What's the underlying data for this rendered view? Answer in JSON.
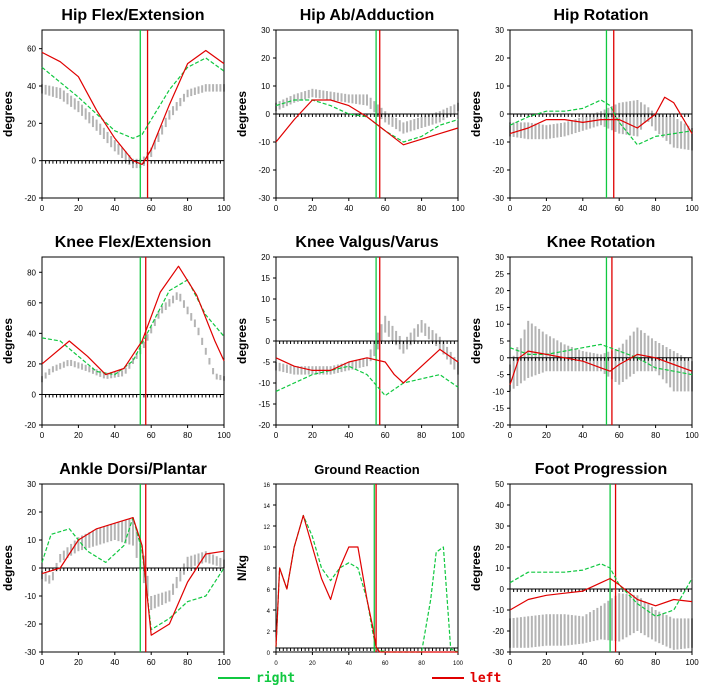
{
  "colors": {
    "right": "#10c840",
    "left": "#e00000",
    "normal": "#b4b4b4",
    "axis": "#000000"
  },
  "legend": {
    "right_label": "right",
    "left_label": "left"
  },
  "chart_data": [
    {
      "type": "line",
      "title": "Hip Flex/Extension",
      "ylabel": "degrees",
      "xlim": [
        0,
        100
      ],
      "ylim": [
        -20,
        70
      ],
      "yticks": [
        -20,
        0,
        20,
        40,
        60
      ],
      "xticks": [
        0,
        20,
        40,
        60,
        80,
        100
      ],
      "vlines": {
        "right": 54,
        "left": 58
      },
      "band": {
        "x": [
          0,
          10,
          20,
          30,
          40,
          50,
          55,
          60,
          70,
          80,
          90,
          100
        ],
        "low": [
          36,
          33,
          26,
          16,
          5,
          -4,
          -4,
          2,
          22,
          34,
          37,
          37
        ],
        "high": [
          41,
          39,
          32,
          22,
          11,
          1,
          1,
          7,
          27,
          38,
          41,
          41
        ]
      },
      "series": [
        {
          "name": "right",
          "x": [
            0,
            10,
            20,
            30,
            40,
            50,
            55,
            60,
            70,
            80,
            90,
            100
          ],
          "y": [
            50,
            42,
            34,
            25,
            16,
            12,
            14,
            22,
            38,
            50,
            55,
            48
          ]
        },
        {
          "name": "left",
          "x": [
            0,
            10,
            20,
            30,
            40,
            50,
            55,
            60,
            70,
            80,
            90,
            100
          ],
          "y": [
            58,
            53,
            45,
            27,
            12,
            0,
            -2,
            6,
            30,
            52,
            59,
            52
          ]
        }
      ]
    },
    {
      "type": "line",
      "title": "Hip Ab/Adduction",
      "ylabel": "degrees",
      "xlim": [
        0,
        100
      ],
      "ylim": [
        -30,
        30
      ],
      "yticks": [
        -30,
        -20,
        -10,
        0,
        10,
        20,
        30
      ],
      "xticks": [
        0,
        20,
        40,
        60,
        80,
        100
      ],
      "vlines": {
        "right": 55,
        "left": 57
      },
      "band": {
        "x": [
          0,
          10,
          20,
          30,
          40,
          50,
          60,
          70,
          80,
          90,
          100
        ],
        "low": [
          1,
          4,
          6,
          5,
          4,
          3,
          -3,
          -7,
          -5,
          -3,
          1
        ],
        "high": [
          4,
          7,
          9,
          8,
          7,
          7,
          1,
          -3,
          -1,
          1,
          4
        ]
      },
      "series": [
        {
          "name": "right",
          "x": [
            0,
            10,
            20,
            30,
            40,
            50,
            60,
            70,
            80,
            90,
            100
          ],
          "y": [
            3,
            5,
            5,
            3,
            0,
            -1,
            -6,
            -10,
            -8,
            -4,
            -2
          ]
        },
        {
          "name": "left",
          "x": [
            0,
            10,
            20,
            30,
            40,
            50,
            60,
            70,
            80,
            90,
            100
          ],
          "y": [
            -10,
            -2,
            5,
            5,
            3,
            -1,
            -6,
            -11,
            -9,
            -7,
            -5
          ]
        }
      ]
    },
    {
      "type": "line",
      "title": "Hip Rotation",
      "ylabel": "degrees",
      "xlim": [
        0,
        100
      ],
      "ylim": [
        -30,
        30
      ],
      "yticks": [
        -30,
        -20,
        -10,
        0,
        10,
        20,
        30
      ],
      "xticks": [
        0,
        20,
        40,
        60,
        80,
        100
      ],
      "vlines": {
        "right": 53,
        "left": 57
      },
      "band": {
        "x": [
          0,
          10,
          20,
          30,
          40,
          50,
          60,
          70,
          75,
          80,
          90,
          100
        ],
        "low": [
          -8,
          -9,
          -9,
          -8,
          -6,
          -4,
          -7,
          -8,
          -2,
          -6,
          -12,
          -13
        ],
        "high": [
          -3,
          -3,
          -4,
          -3,
          -1,
          1,
          4,
          5,
          3,
          0,
          -1,
          -5
        ]
      },
      "series": [
        {
          "name": "right",
          "x": [
            0,
            10,
            20,
            30,
            40,
            50,
            55,
            60,
            70,
            80,
            90,
            100
          ],
          "y": [
            -4,
            -1,
            1,
            1,
            2,
            5,
            3,
            -3,
            -11,
            -8,
            -7,
            -6
          ]
        },
        {
          "name": "left",
          "x": [
            0,
            10,
            20,
            30,
            40,
            50,
            55,
            60,
            70,
            80,
            85,
            90,
            100
          ],
          "y": [
            -7,
            -5,
            -2,
            -2,
            -3,
            -2,
            -2,
            -2,
            -5,
            0,
            6,
            4,
            -7
          ]
        }
      ]
    },
    {
      "type": "line",
      "title": "Knee Flex/Extension",
      "ylabel": "degrees",
      "xlim": [
        0,
        100
      ],
      "ylim": [
        -20,
        90
      ],
      "yticks": [
        -20,
        0,
        20,
        40,
        60,
        80
      ],
      "xticks": [
        0,
        20,
        40,
        60,
        80,
        100
      ],
      "vlines": {
        "right": 54,
        "left": 57
      },
      "band": {
        "x": [
          0,
          5,
          15,
          25,
          35,
          45,
          55,
          65,
          75,
          85,
          95,
          100
        ],
        "low": [
          8,
          14,
          19,
          15,
          10,
          12,
          28,
          52,
          63,
          42,
          10,
          9
        ],
        "high": [
          12,
          18,
          23,
          19,
          14,
          16,
          32,
          57,
          68,
          47,
          14,
          12
        ]
      },
      "series": [
        {
          "name": "right",
          "x": [
            0,
            10,
            20,
            30,
            40,
            50,
            60,
            70,
            80,
            90,
            100
          ],
          "y": [
            37,
            35,
            25,
            15,
            13,
            22,
            45,
            68,
            75,
            52,
            38
          ]
        },
        {
          "name": "left",
          "x": [
            0,
            5,
            15,
            25,
            35,
            45,
            55,
            65,
            75,
            85,
            95,
            100
          ],
          "y": [
            20,
            25,
            35,
            25,
            13,
            17,
            35,
            67,
            84,
            65,
            35,
            22
          ]
        }
      ]
    },
    {
      "type": "line",
      "title": "Knee Valgus/Varus",
      "ylabel": "degrees",
      "xlim": [
        0,
        100
      ],
      "ylim": [
        -20,
        20
      ],
      "yticks": [
        -20,
        -15,
        -10,
        -5,
        0,
        5,
        10,
        15,
        20
      ],
      "xticks": [
        0,
        20,
        40,
        60,
        80,
        100
      ],
      "vlines": {
        "right": 55,
        "left": 57
      },
      "band": {
        "x": [
          0,
          10,
          20,
          30,
          40,
          50,
          55,
          60,
          70,
          80,
          90,
          100
        ],
        "low": [
          -7,
          -8,
          -8,
          -8,
          -7,
          -6,
          -3,
          2,
          -3,
          2,
          -2,
          -8
        ],
        "high": [
          -5,
          -6,
          -6,
          -6,
          -5,
          -4,
          1,
          6,
          0,
          5,
          1,
          -5
        ]
      },
      "series": [
        {
          "name": "right",
          "x": [
            0,
            10,
            20,
            30,
            40,
            50,
            60,
            70,
            80,
            90,
            100
          ],
          "y": [
            -12,
            -10,
            -8,
            -7,
            -6,
            -8,
            -13,
            -10,
            -9,
            -8,
            -11
          ]
        },
        {
          "name": "left",
          "x": [
            0,
            10,
            20,
            30,
            40,
            50,
            60,
            65,
            70,
            80,
            90,
            100
          ],
          "y": [
            -4,
            -6,
            -7,
            -7,
            -5,
            -4,
            -5,
            -8,
            -10,
            -6,
            -2,
            -5
          ]
        }
      ]
    },
    {
      "type": "line",
      "title": "Knee Rotation",
      "ylabel": "degrees",
      "xlim": [
        0,
        100
      ],
      "ylim": [
        -20,
        30
      ],
      "yticks": [
        -20,
        -15,
        -10,
        -5,
        0,
        5,
        10,
        15,
        20,
        25,
        30
      ],
      "xticks": [
        0,
        20,
        40,
        60,
        80,
        100
      ],
      "vlines": {
        "right": 53,
        "left": 56
      },
      "band": {
        "x": [
          0,
          10,
          20,
          30,
          40,
          50,
          60,
          70,
          80,
          90,
          100
        ],
        "low": [
          -10,
          -6,
          -4,
          -4,
          -4,
          -4,
          -8,
          -4,
          -4,
          -10,
          -10
        ],
        "high": [
          -2,
          11,
          7,
          4,
          2,
          1,
          3,
          9,
          5,
          2,
          -1
        ]
      },
      "series": [
        {
          "name": "right",
          "x": [
            0,
            10,
            20,
            30,
            40,
            50,
            60,
            70,
            80,
            90,
            100
          ],
          "y": [
            3,
            1,
            1,
            2,
            3,
            4,
            2,
            0,
            -3,
            -4,
            -5
          ]
        },
        {
          "name": "left",
          "x": [
            0,
            5,
            10,
            20,
            30,
            40,
            50,
            55,
            60,
            70,
            80,
            90,
            100
          ],
          "y": [
            -8,
            0,
            2,
            1,
            0,
            -1,
            -3,
            -4,
            -2,
            1,
            0,
            -2,
            -4
          ]
        }
      ]
    },
    {
      "type": "line",
      "title": "Ankle Dorsi/Plantar",
      "ylabel": "degrees",
      "xlim": [
        0,
        100
      ],
      "ylim": [
        -30,
        30
      ],
      "yticks": [
        -30,
        -20,
        -10,
        0,
        10,
        20,
        30
      ],
      "xticks": [
        0,
        20,
        40,
        60,
        80,
        100
      ],
      "vlines": {
        "right": 54,
        "left": 57
      },
      "band": {
        "x": [
          0,
          5,
          10,
          20,
          30,
          40,
          50,
          55,
          60,
          70,
          80,
          90,
          100
        ],
        "low": [
          -4,
          -6,
          2,
          6,
          8,
          10,
          8,
          -3,
          -15,
          -12,
          0,
          2,
          0
        ],
        "high": [
          -1,
          -3,
          5,
          11,
          14,
          16,
          18,
          8,
          -10,
          -8,
          4,
          6,
          3
        ]
      },
      "series": [
        {
          "name": "right",
          "x": [
            0,
            5,
            15,
            25,
            35,
            45,
            50,
            55,
            60,
            70,
            80,
            90,
            100
          ],
          "y": [
            2,
            12,
            14,
            6,
            2,
            8,
            18,
            6,
            -22,
            -18,
            -12,
            -10,
            0
          ]
        },
        {
          "name": "left",
          "x": [
            0,
            10,
            20,
            30,
            40,
            50,
            55,
            60,
            70,
            80,
            90,
            100
          ],
          "y": [
            -2,
            0,
            10,
            14,
            16,
            18,
            8,
            -24,
            -20,
            -5,
            5,
            6
          ]
        }
      ]
    },
    {
      "type": "line",
      "title": "Ground Reaction",
      "ylabel": "N/kg",
      "xlim": [
        0,
        100
      ],
      "ylim": [
        0,
        16
      ],
      "yticks": [
        0,
        2,
        4,
        6,
        8,
        10,
        12,
        14,
        16
      ],
      "xticks": [
        0,
        20,
        40,
        60,
        80,
        100
      ],
      "vlines": {
        "right": 54,
        "left": 55
      },
      "series": [
        {
          "name": "right",
          "x": [
            0,
            2,
            6,
            10,
            15,
            20,
            25,
            30,
            35,
            40,
            45,
            50,
            53,
            55,
            58,
            62,
            70,
            76,
            80,
            85,
            88,
            92,
            96,
            100
          ],
          "y": [
            0.5,
            8,
            6,
            10,
            13,
            11,
            8,
            6.8,
            8,
            8.5,
            8,
            5,
            2,
            0.3,
            0.1,
            0,
            0,
            0,
            0,
            5,
            9.5,
            10,
            0.3,
            0
          ]
        },
        {
          "name": "left",
          "x": [
            0,
            2,
            6,
            10,
            15,
            20,
            25,
            30,
            35,
            40,
            45,
            50,
            53,
            55,
            57,
            60,
            70,
            80,
            90,
            100
          ],
          "y": [
            0.5,
            8,
            6,
            10,
            13,
            10,
            7,
            5,
            8,
            10,
            10,
            5,
            2.5,
            0.5,
            0,
            0,
            0,
            0,
            0,
            0
          ]
        }
      ]
    },
    {
      "type": "line",
      "title": "Foot Progression",
      "ylabel": "degrees",
      "xlim": [
        0,
        100
      ],
      "ylim": [
        -30,
        50
      ],
      "yticks": [
        -30,
        -20,
        -10,
        0,
        10,
        20,
        30,
        40,
        50
      ],
      "xticks": [
        0,
        20,
        40,
        60,
        80,
        100
      ],
      "vlines": {
        "right": 55,
        "left": 58
      },
      "band": {
        "x": [
          0,
          10,
          20,
          30,
          40,
          50,
          60,
          70,
          80,
          90,
          100
        ],
        "low": [
          -28,
          -28,
          -27,
          -27,
          -26,
          -24,
          -25,
          -20,
          -25,
          -29,
          -28
        ],
        "high": [
          -14,
          -13,
          -12,
          -12,
          -13,
          -8,
          -2,
          -3,
          -10,
          -14,
          -14
        ]
      },
      "series": [
        {
          "name": "right",
          "x": [
            0,
            10,
            20,
            30,
            40,
            50,
            55,
            60,
            70,
            80,
            90,
            100
          ],
          "y": [
            3,
            8,
            8,
            8,
            9,
            12,
            10,
            2,
            -7,
            -13,
            -10,
            5
          ]
        },
        {
          "name": "left",
          "x": [
            0,
            10,
            20,
            30,
            40,
            50,
            55,
            60,
            70,
            80,
            90,
            100
          ],
          "y": [
            -10,
            -5,
            -3,
            -2,
            -1,
            3,
            5,
            2,
            -5,
            -8,
            -5,
            -6
          ]
        }
      ]
    }
  ]
}
